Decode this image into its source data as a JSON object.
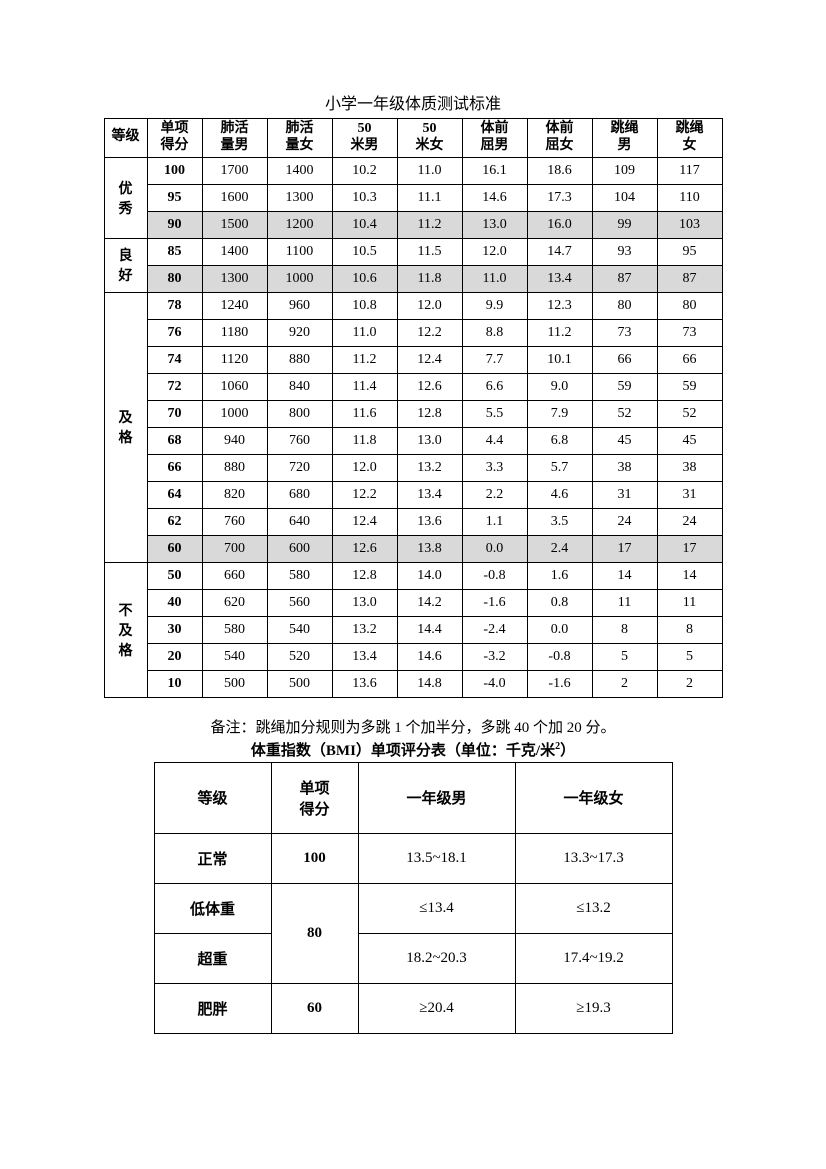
{
  "title": "小学一年级体质测试标准",
  "headers": [
    "等级",
    "单项得分",
    "肺活量男",
    "肺活量女",
    "50米男",
    "50米女",
    "体前屈男",
    "体前屈女",
    "跳绳男",
    "跳绳女"
  ],
  "groups": [
    {
      "grade": "优秀",
      "rows": [
        {
          "score": "100",
          "vals": [
            "1700",
            "1400",
            "10.2",
            "11.0",
            "16.1",
            "18.6",
            "109",
            "117"
          ],
          "shaded": false
        },
        {
          "score": "95",
          "vals": [
            "1600",
            "1300",
            "10.3",
            "11.1",
            "14.6",
            "17.3",
            "104",
            "110"
          ],
          "shaded": false
        },
        {
          "score": "90",
          "vals": [
            "1500",
            "1200",
            "10.4",
            "11.2",
            "13.0",
            "16.0",
            "99",
            "103"
          ],
          "shaded": true
        }
      ]
    },
    {
      "grade": "良好",
      "rows": [
        {
          "score": "85",
          "vals": [
            "1400",
            "1100",
            "10.5",
            "11.5",
            "12.0",
            "14.7",
            "93",
            "95"
          ],
          "shaded": false
        },
        {
          "score": "80",
          "vals": [
            "1300",
            "1000",
            "10.6",
            "11.8",
            "11.0",
            "13.4",
            "87",
            "87"
          ],
          "shaded": true
        }
      ]
    },
    {
      "grade": "及格",
      "rows": [
        {
          "score": "78",
          "vals": [
            "1240",
            "960",
            "10.8",
            "12.0",
            "9.9",
            "12.3",
            "80",
            "80"
          ],
          "shaded": false
        },
        {
          "score": "76",
          "vals": [
            "1180",
            "920",
            "11.0",
            "12.2",
            "8.8",
            "11.2",
            "73",
            "73"
          ],
          "shaded": false
        },
        {
          "score": "74",
          "vals": [
            "1120",
            "880",
            "11.2",
            "12.4",
            "7.7",
            "10.1",
            "66",
            "66"
          ],
          "shaded": false
        },
        {
          "score": "72",
          "vals": [
            "1060",
            "840",
            "11.4",
            "12.6",
            "6.6",
            "9.0",
            "59",
            "59"
          ],
          "shaded": false
        },
        {
          "score": "70",
          "vals": [
            "1000",
            "800",
            "11.6",
            "12.8",
            "5.5",
            "7.9",
            "52",
            "52"
          ],
          "shaded": false
        },
        {
          "score": "68",
          "vals": [
            "940",
            "760",
            "11.8",
            "13.0",
            "4.4",
            "6.8",
            "45",
            "45"
          ],
          "shaded": false
        },
        {
          "score": "66",
          "vals": [
            "880",
            "720",
            "12.0",
            "13.2",
            "3.3",
            "5.7",
            "38",
            "38"
          ],
          "shaded": false
        },
        {
          "score": "64",
          "vals": [
            "820",
            "680",
            "12.2",
            "13.4",
            "2.2",
            "4.6",
            "31",
            "31"
          ],
          "shaded": false
        },
        {
          "score": "62",
          "vals": [
            "760",
            "640",
            "12.4",
            "13.6",
            "1.1",
            "3.5",
            "24",
            "24"
          ],
          "shaded": false
        },
        {
          "score": "60",
          "vals": [
            "700",
            "600",
            "12.6",
            "13.8",
            "0.0",
            "2.4",
            "17",
            "17"
          ],
          "shaded": true
        }
      ]
    },
    {
      "grade": "不及格",
      "rows": [
        {
          "score": "50",
          "vals": [
            "660",
            "580",
            "12.8",
            "14.0",
            "-0.8",
            "1.6",
            "14",
            "14"
          ],
          "shaded": false
        },
        {
          "score": "40",
          "vals": [
            "620",
            "560",
            "13.0",
            "14.2",
            "-1.6",
            "0.8",
            "11",
            "11"
          ],
          "shaded": false
        },
        {
          "score": "30",
          "vals": [
            "580",
            "540",
            "13.2",
            "14.4",
            "-2.4",
            "0.0",
            "8",
            "8"
          ],
          "shaded": false
        },
        {
          "score": "20",
          "vals": [
            "540",
            "520",
            "13.4",
            "14.6",
            "-3.2",
            "-0.8",
            "5",
            "5"
          ],
          "shaded": false
        },
        {
          "score": "10",
          "vals": [
            "500",
            "500",
            "13.6",
            "14.8",
            "-4.0",
            "-1.6",
            "2",
            "2"
          ],
          "shaded": false
        }
      ]
    }
  ],
  "note": "备注：跳绳加分规则为多跳 1 个加半分，多跳 40 个加 20 分。",
  "bmi_title_a": "体重指数（BMI）单项评分表（单位：千克/米",
  "bmi_title_b": "2",
  "bmi_title_c": "）",
  "bmi_headers": [
    "等级",
    "单项得分",
    "一年级男",
    "一年级女"
  ],
  "bmi_rows": [
    {
      "grade": "正常",
      "score": "100",
      "m": "13.5~18.1",
      "f": "13.3~17.3",
      "score_rowspan": 1
    },
    {
      "grade": "低体重",
      "score": "80",
      "m": "≤13.4",
      "f": "≤13.2",
      "score_rowspan": 2
    },
    {
      "grade": "超重",
      "score": "",
      "m": "18.2~20.3",
      "f": "17.4~19.2",
      "score_rowspan": 0
    },
    {
      "grade": "肥胖",
      "score": "60",
      "m": "≥20.4",
      "f": "≥19.3",
      "score_rowspan": 1
    }
  ]
}
